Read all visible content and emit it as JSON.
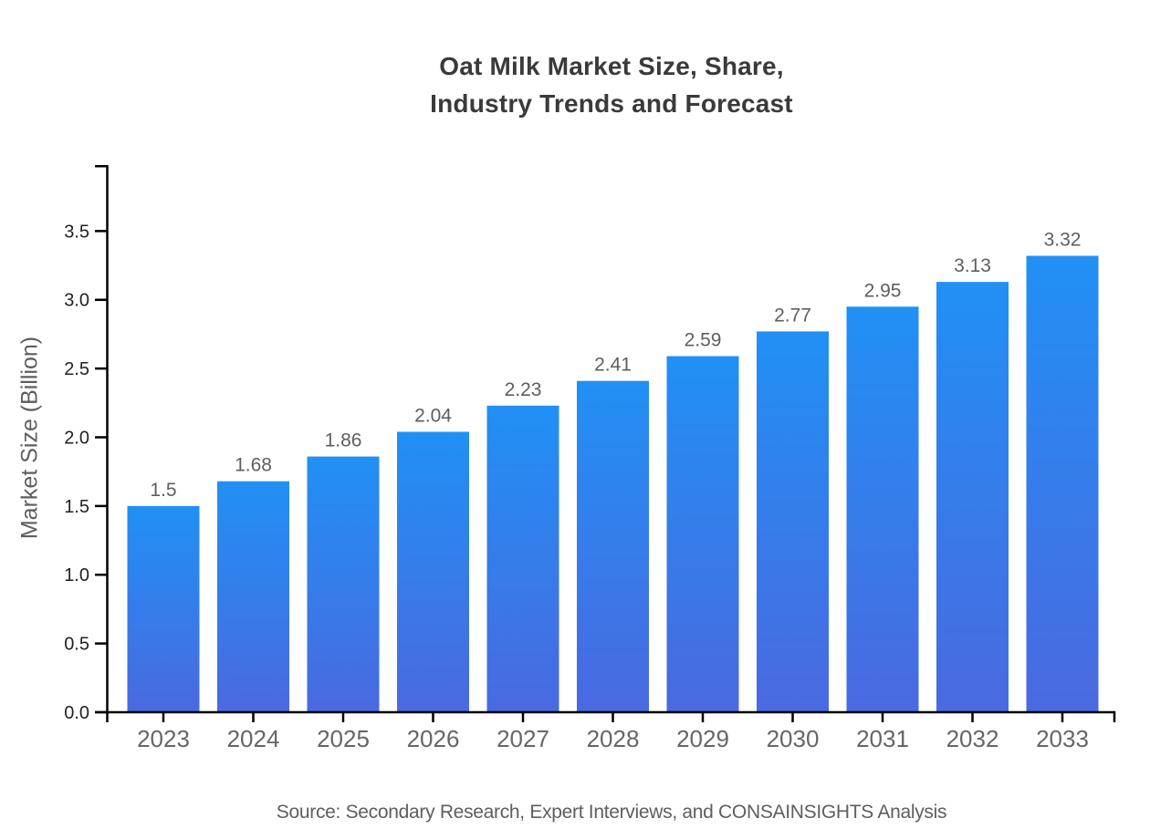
{
  "chart_data": {
    "type": "bar",
    "title": "Oat Milk Market Size, Share,\nIndustry Trends and Forecast",
    "xlabel": "",
    "ylabel": "Market Size (Billion)",
    "categories": [
      "2023",
      "2024",
      "2025",
      "2026",
      "2027",
      "2028",
      "2029",
      "2030",
      "2031",
      "2032",
      "2033"
    ],
    "values": [
      1.5,
      1.68,
      1.86,
      2.04,
      2.23,
      2.41,
      2.59,
      2.77,
      2.95,
      3.13,
      3.32
    ],
    "value_labels": [
      "1.5",
      "1.68",
      "1.86",
      "2.04",
      "2.23",
      "2.41",
      "2.59",
      "2.77",
      "2.95",
      "3.13",
      "3.32"
    ],
    "yticks": [
      0.0,
      0.5,
      1.0,
      1.5,
      2.0,
      2.5,
      3.0,
      3.5
    ],
    "ytick_labels": [
      "0.0",
      "0.5",
      "1.0",
      "1.5",
      "2.0",
      "2.5",
      "3.0",
      "3.5"
    ],
    "ylim": [
      0,
      3.98
    ],
    "grid": false,
    "legend": false,
    "colors": {
      "bar_gradient_top": "#2190f4",
      "bar_gradient_bottom": "#4a69e0",
      "axis": "#000000",
      "ytick_label": "#222222",
      "xtick_label": "#666666",
      "value_label": "#5e5e5e"
    }
  },
  "source": {
    "text": "Source: Secondary Research, Expert Interviews, and CONSAINSIGHTS Analysis"
  }
}
